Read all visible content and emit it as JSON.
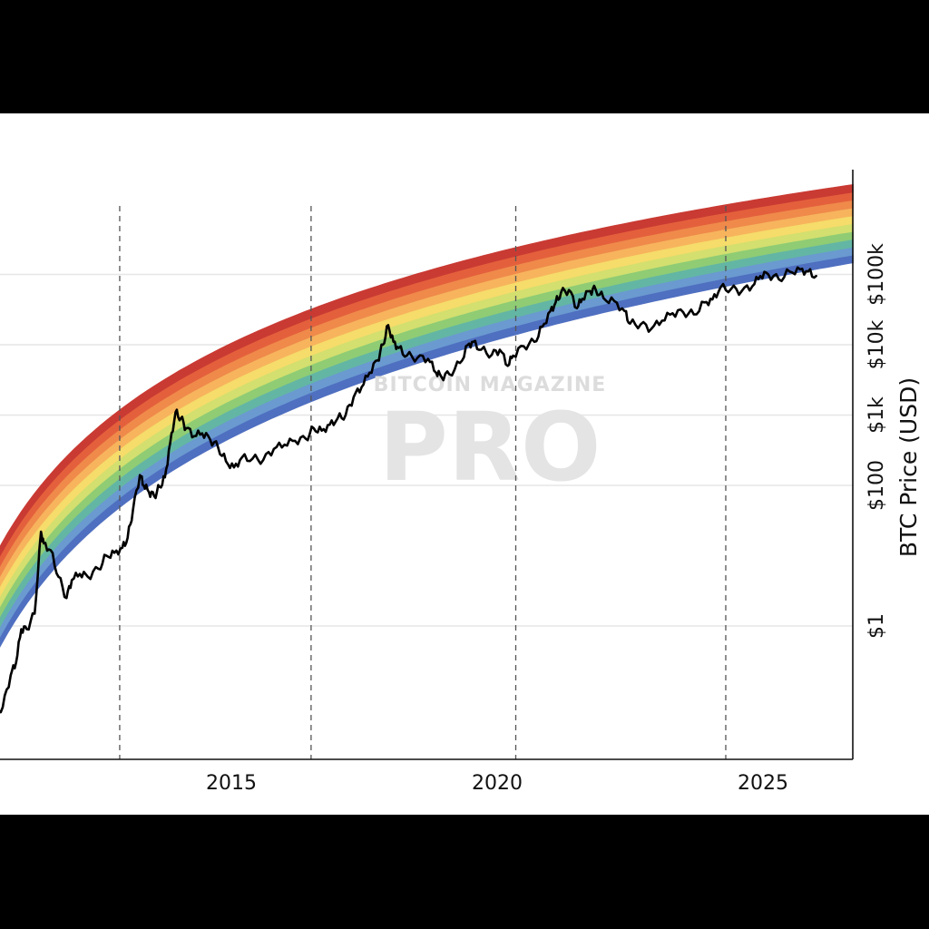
{
  "chart_data": {
    "type": "line",
    "ylabel": "BTC Price (USD)",
    "y_scale": "log",
    "x_ticks": [
      {
        "value": 2015,
        "label": "2015"
      },
      {
        "value": 2020,
        "label": "2020"
      },
      {
        "value": 2025,
        "label": "2025"
      }
    ],
    "y_ticks": [
      {
        "value": 1,
        "label": "$1"
      },
      {
        "value": 100,
        "label": "$100"
      },
      {
        "value": 1000,
        "label": "$1k"
      },
      {
        "value": 10000,
        "label": "$10k"
      },
      {
        "value": 100000,
        "label": "$100k"
      }
    ],
    "halving_lines": [
      2012.9,
      2016.5,
      2020.35,
      2024.3
    ],
    "grid": "horizontal",
    "band_colors": [
      "#4f6fc0",
      "#6a9ad0",
      "#63b6a4",
      "#8fcc74",
      "#d3df6f",
      "#f6dc6a",
      "#f7b45d",
      "#ef8a4b",
      "#e4603c",
      "#c93a33"
    ],
    "series": [
      {
        "x": [
          2010.55,
          2010.7,
          2010.85,
          2010.95,
          2011.05,
          2011.15,
          2011.3,
          2011.42,
          2011.47,
          2011.6,
          2011.75,
          2011.9,
          2012.0,
          2012.15,
          2012.3,
          2012.5,
          2012.65,
          2012.8,
          2012.95,
          2013.05,
          2013.15,
          2013.28,
          2013.35,
          2013.45,
          2013.55,
          2013.65,
          2013.75,
          2013.85,
          2013.95,
          2014.05,
          2014.15,
          2014.3,
          2014.45,
          2014.6,
          2014.75,
          2014.9,
          2015.05,
          2015.2,
          2015.4,
          2015.6,
          2015.8,
          2016.0,
          2016.2,
          2016.4,
          2016.55,
          2016.7,
          2016.85,
          2017.0,
          2017.15,
          2017.3,
          2017.45,
          2017.6,
          2017.75,
          2017.85,
          2017.95,
          2018.05,
          2018.15,
          2018.3,
          2018.5,
          2018.7,
          2018.85,
          2018.95,
          2019.1,
          2019.3,
          2019.45,
          2019.55,
          2019.7,
          2019.9,
          2020.05,
          2020.2,
          2020.3,
          2020.5,
          2020.7,
          2020.85,
          2021.0,
          2021.1,
          2021.2,
          2021.35,
          2021.5,
          2021.6,
          2021.75,
          2021.85,
          2022.0,
          2022.2,
          2022.4,
          2022.5,
          2022.7,
          2022.9,
          2023.1,
          2023.3,
          2023.5,
          2023.7,
          2023.9,
          2024.05,
          2024.2,
          2024.4,
          2024.6,
          2024.8,
          2024.95,
          2025.1,
          2025.3,
          2025.5,
          2025.7,
          2025.85,
          2026.0
        ],
        "y": [
          0.06,
          0.07,
          0.2,
          0.3,
          0.9,
          0.9,
          1.5,
          22,
          15,
          12,
          5,
          2.5,
          4.5,
          5.5,
          5,
          6.5,
          10,
          11,
          13,
          18,
          45,
          140,
          100,
          80,
          70,
          95,
          130,
          400,
          1100,
          900,
          650,
          500,
          550,
          450,
          350,
          220,
          180,
          250,
          240,
          230,
          330,
          380,
          430,
          460,
          650,
          600,
          730,
          900,
          1000,
          1800,
          2500,
          4000,
          6000,
          10000,
          19000,
          11000,
          9000,
          7000,
          6500,
          6300,
          4000,
          3500,
          3800,
          5500,
          10000,
          11000,
          8500,
          7200,
          8500,
          5000,
          7000,
          9500,
          11000,
          18000,
          30000,
          40000,
          55000,
          60000,
          33000,
          45000,
          58000,
          62000,
          46000,
          42000,
          30000,
          20000,
          19500,
          16800,
          22000,
          28000,
          29000,
          27000,
          40000,
          44000,
          65000,
          62000,
          58000,
          68000,
          95000,
          100000,
          85000,
          110000,
          118000,
          110000,
          95000
        ]
      }
    ]
  },
  "watermark": {
    "line1": "BITCOIN MAGAZINE",
    "line2": "PRO"
  }
}
